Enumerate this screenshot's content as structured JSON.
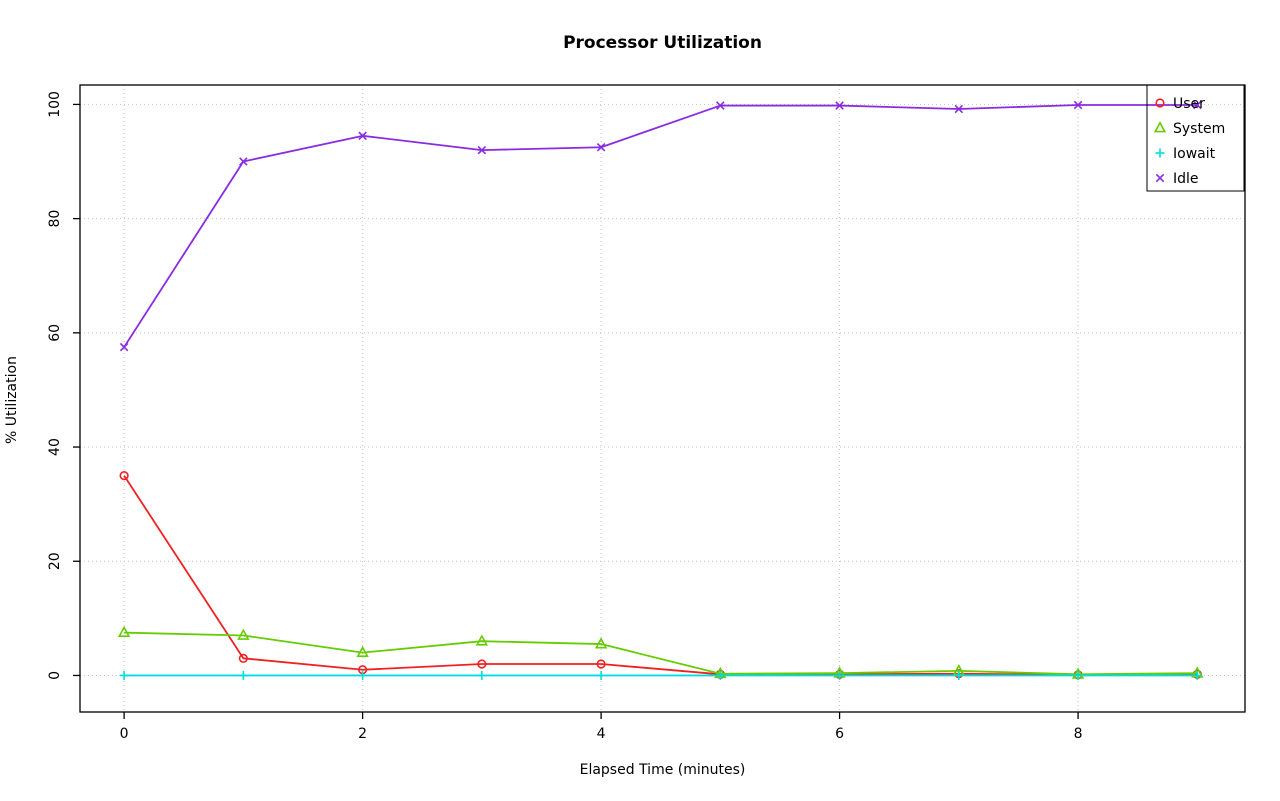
{
  "title": "Processor Utilization",
  "chart_data": {
    "type": "line",
    "title": "Processor Utilization",
    "xlabel": "Elapsed Time (minutes)",
    "ylabel": "% Utilization",
    "xlim": [
      -0.37,
      9.4
    ],
    "ylim": [
      -6.4,
      103.4
    ],
    "xticks": [
      0,
      2,
      4,
      6,
      8
    ],
    "yticks": [
      0,
      20,
      40,
      60,
      80,
      100
    ],
    "grid": true,
    "grid_color": "#c4c4c4",
    "legend_position": "top-right",
    "legend_entries": [
      "User",
      "System",
      "Iowait",
      "Idle"
    ],
    "x": [
      0,
      1,
      2,
      3,
      4,
      5,
      6,
      7,
      8,
      9
    ],
    "series": [
      {
        "name": "User",
        "color": "#ee2222",
        "marker": "circle",
        "values": [
          35,
          3,
          1,
          2,
          2,
          0.2,
          0.2,
          0.3,
          0.1,
          0.2
        ]
      },
      {
        "name": "System",
        "color": "#66cc00",
        "marker": "triangle",
        "values": [
          7.5,
          7,
          4,
          6,
          5.5,
          0.3,
          0.4,
          0.8,
          0.2,
          0.4
        ]
      },
      {
        "name": "Iowait",
        "color": "#00dddd",
        "marker": "plus",
        "values": [
          0,
          0,
          0,
          0,
          0,
          0,
          0,
          0,
          0,
          0
        ]
      },
      {
        "name": "Idle",
        "color": "#8a2be2",
        "marker": "x",
        "values": [
          57.5,
          90,
          94.5,
          92,
          92.5,
          99.8,
          99.8,
          99.2,
          99.9,
          99.9
        ]
      }
    ]
  }
}
